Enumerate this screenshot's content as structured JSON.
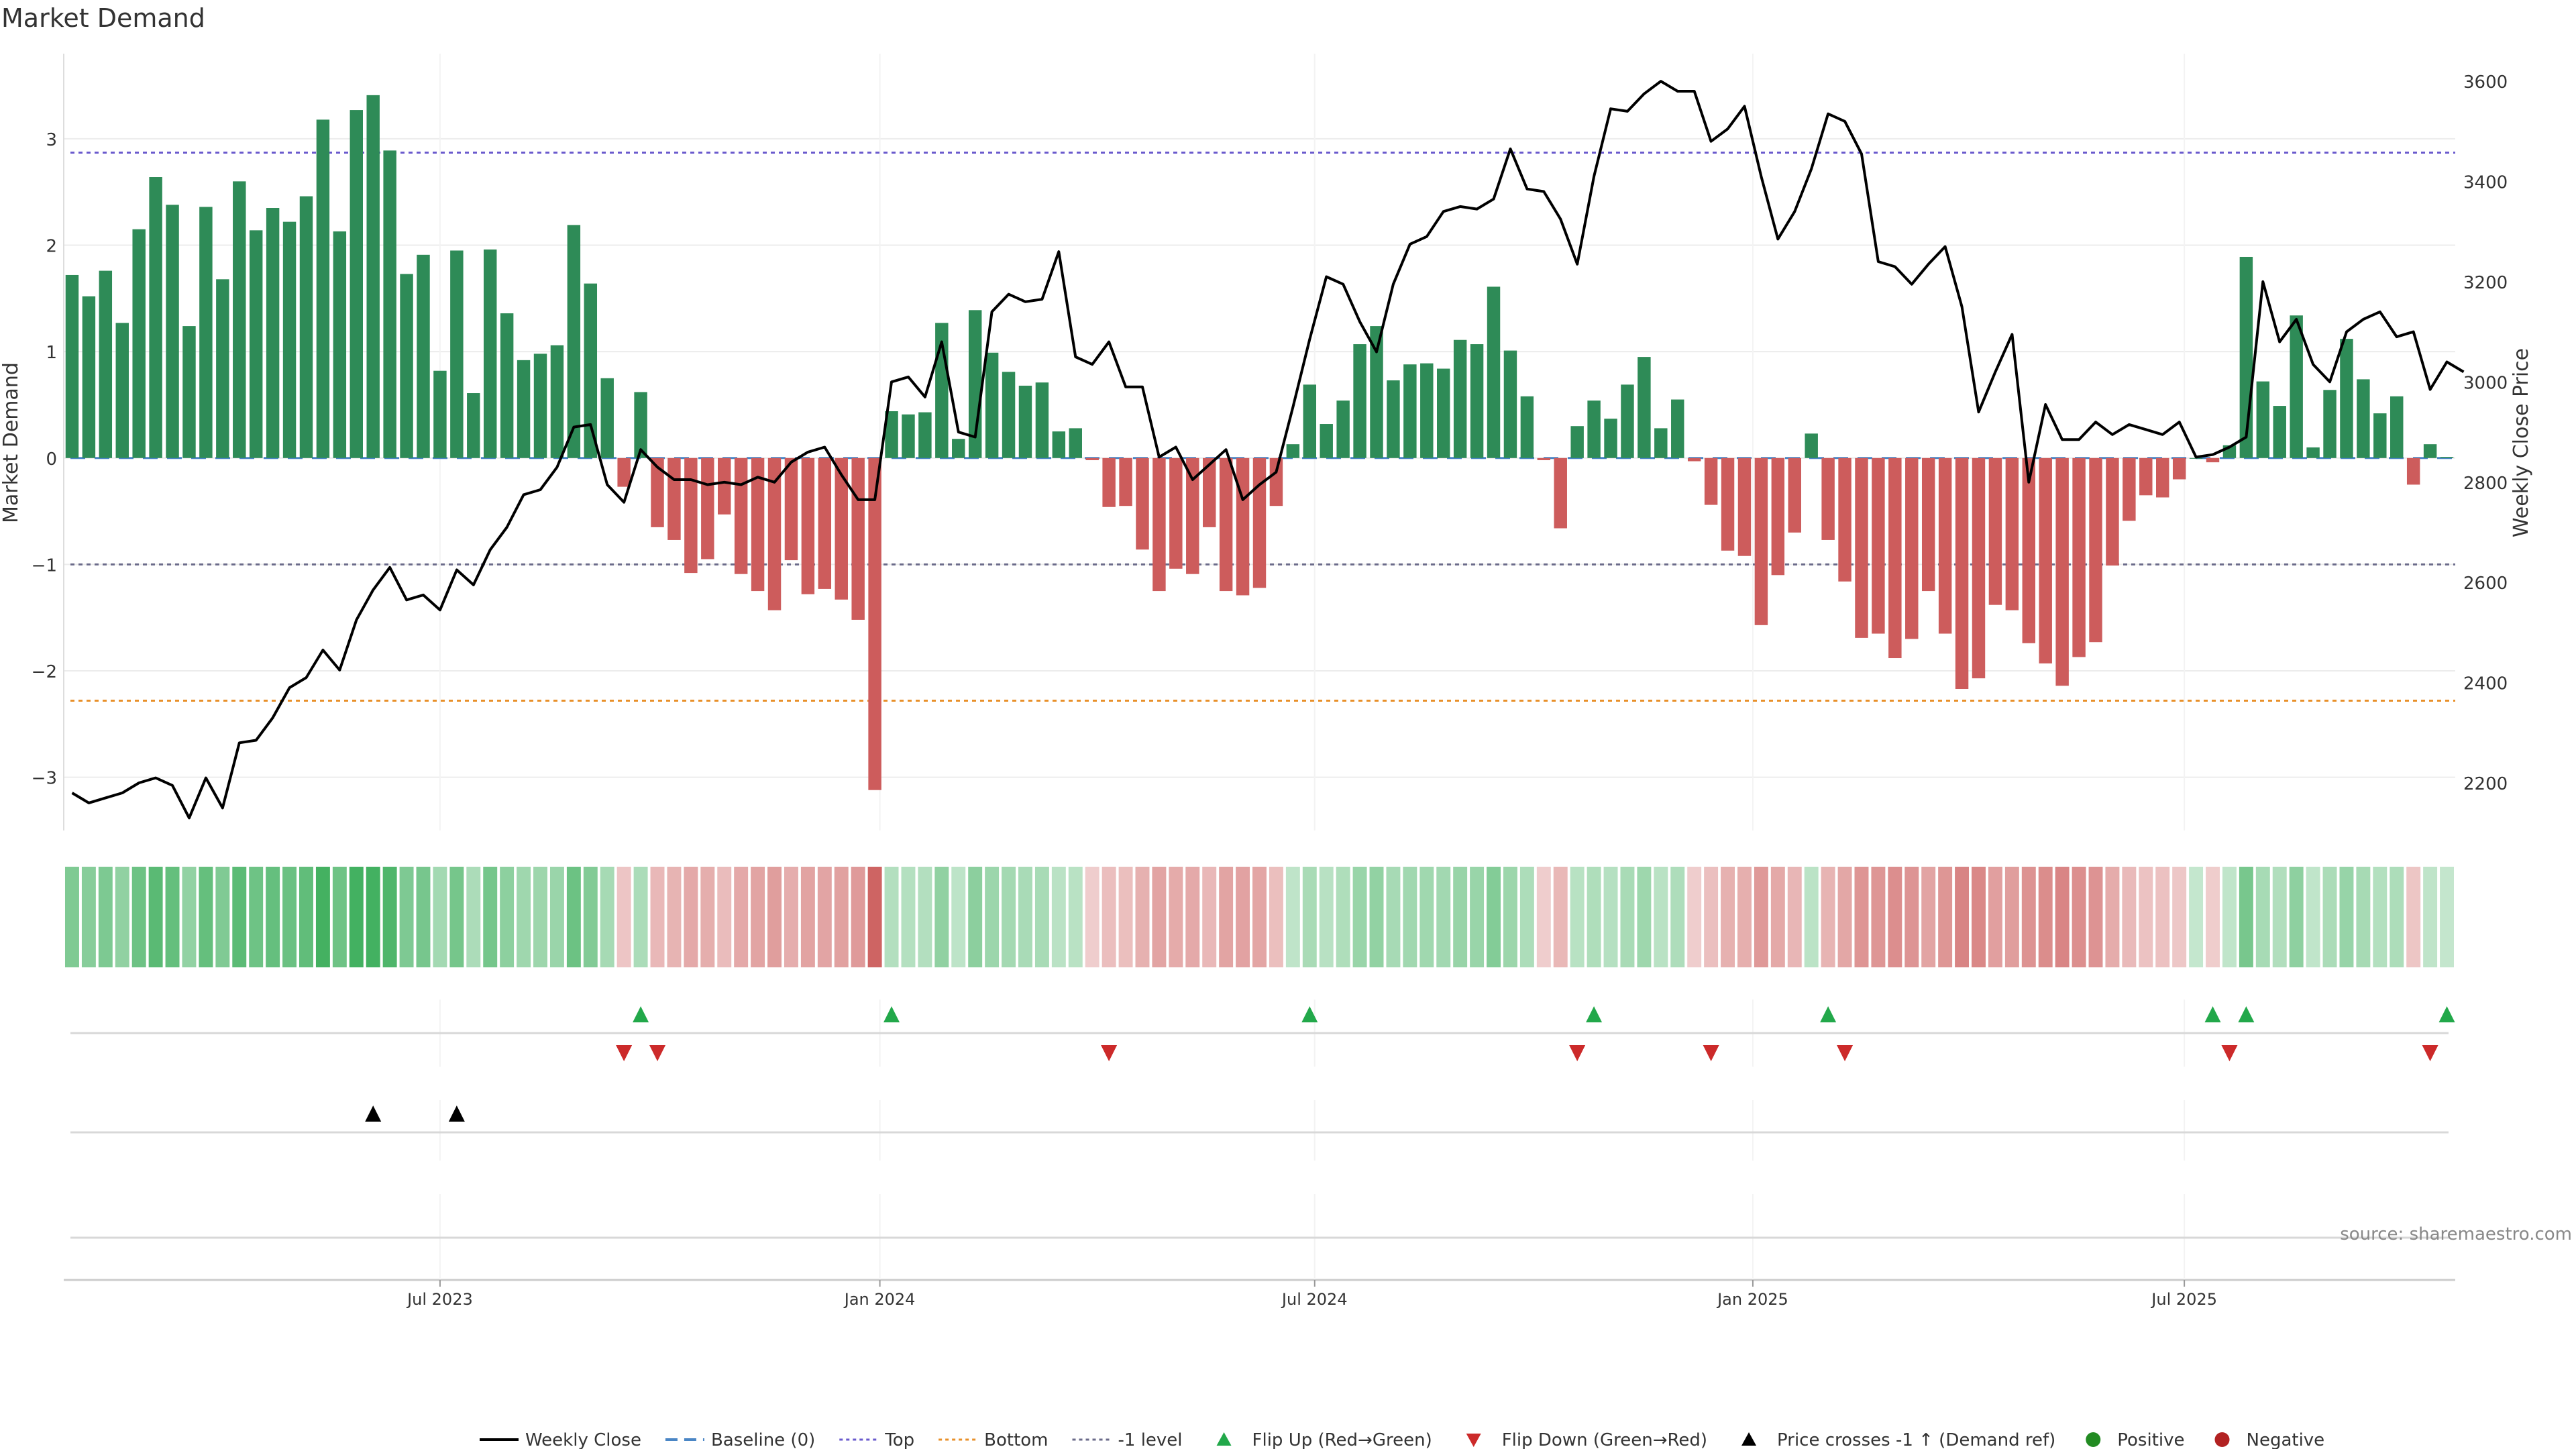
{
  "title": "Market Demand",
  "source": "source: sharemaestro.com",
  "colors": {
    "positive_bar": "#2e8b57",
    "negative_bar": "#cd5c5c",
    "price_line": "#000000",
    "baseline": "#4a86c5",
    "top": "#6a5acd",
    "bottom": "#e8902a",
    "minus_one": "#6b6b8a",
    "flip_up": "#22a84a",
    "flip_down": "#cc2a2a",
    "cross": "#000000",
    "positive_dot": "#228b22",
    "negative_dot": "#b22222",
    "grid": "#ececec"
  },
  "legend": [
    {
      "label": "Weekly Close",
      "marker": "line",
      "color": "#000000"
    },
    {
      "label": "Baseline (0)",
      "marker": "dash",
      "color": "#4a86c5"
    },
    {
      "label": "Top",
      "marker": "dot",
      "color": "#6a5acd"
    },
    {
      "label": "Bottom",
      "marker": "dot",
      "color": "#e8902a"
    },
    {
      "label": "-1 level",
      "marker": "dot",
      "color": "#6b6b8a"
    },
    {
      "label": "Flip Up (Red→Green)",
      "marker": "tri-up",
      "color": "#22a84a"
    },
    {
      "label": "Flip Down (Green→Red)",
      "marker": "tri-down",
      "color": "#cc2a2a"
    },
    {
      "label": "Price crosses -1 ↑ (Demand ref)",
      "marker": "tri-up",
      "color": "#000000"
    },
    {
      "label": "Positive",
      "marker": "circle",
      "color": "#228b22"
    },
    {
      "label": "Negative",
      "marker": "circle",
      "color": "#b22222"
    }
  ],
  "chart_data": {
    "type": "bar",
    "xlabel": "",
    "ylabel": "Market Demand",
    "y2label": "Weekly Close Price",
    "ylim": [
      -3.5,
      3.8
    ],
    "y2lim": [
      2105,
      3655
    ],
    "yticks": [
      -3,
      -2,
      -1,
      0,
      1,
      2,
      3
    ],
    "yticklabels": [
      "−3",
      "−2",
      "−1",
      "0",
      "1",
      "2",
      "3"
    ],
    "y2ticks": [
      2200,
      2400,
      2600,
      2800,
      3000,
      3200,
      3400,
      3600
    ],
    "y2ticklabels": [
      "2200",
      "2400",
      "2600",
      "2800",
      "3000",
      "3200",
      "3400",
      "3600"
    ],
    "x_start_index": 0,
    "xticks": [
      {
        "index": 22,
        "label": "Jul 2023"
      },
      {
        "index": 48.3,
        "label": "Jan 2024"
      },
      {
        "index": 74.3,
        "label": "Jul 2024"
      },
      {
        "index": 100.5,
        "label": "Jan 2025"
      },
      {
        "index": 126.3,
        "label": "Jul 2025"
      }
    ],
    "reference_lines": {
      "baseline": 0,
      "top": 2.87,
      "bottom": -2.28,
      "minus_one": -1
    },
    "demand": [
      1.72,
      1.52,
      1.76,
      1.27,
      2.15,
      2.64,
      2.38,
      1.24,
      2.36,
      1.68,
      2.6,
      2.14,
      2.35,
      2.22,
      2.46,
      3.18,
      2.13,
      3.27,
      3.41,
      2.89,
      1.73,
      1.91,
      0.82,
      1.95,
      0.61,
      1.96,
      1.36,
      0.92,
      0.98,
      1.06,
      2.19,
      1.64,
      0.75,
      -0.27,
      0.62,
      -0.65,
      -0.77,
      -1.08,
      -0.95,
      -0.53,
      -1.09,
      -1.25,
      -1.43,
      -0.96,
      -1.28,
      -1.23,
      -1.33,
      -1.52,
      -3.12,
      0.44,
      0.41,
      0.43,
      1.27,
      0.18,
      1.39,
      0.99,
      0.81,
      0.68,
      0.71,
      0.25,
      0.28,
      -0.02,
      -0.46,
      -0.45,
      -0.86,
      -1.25,
      -1.04,
      -1.09,
      -0.65,
      -1.25,
      -1.29,
      -1.22,
      -0.45,
      0.13,
      0.69,
      0.32,
      0.54,
      1.07,
      1.24,
      0.73,
      0.88,
      0.89,
      0.84,
      1.11,
      1.07,
      1.61,
      1.01,
      0.58,
      -0.02,
      -0.66,
      0.3,
      0.54,
      0.37,
      0.69,
      0.95,
      0.28,
      0.55,
      -0.03,
      -0.44,
      -0.87,
      -0.92,
      -1.57,
      -1.1,
      -0.7,
      0.23,
      -0.77,
      -1.16,
      -1.69,
      -1.65,
      -1.88,
      -1.7,
      -1.25,
      -1.65,
      -2.17,
      -2.07,
      -1.38,
      -1.43,
      -1.74,
      -1.93,
      -2.14,
      -1.87,
      -1.73,
      -1.01,
      -0.59,
      -0.35,
      -0.37,
      -0.2,
      0.0,
      -0.04,
      0.12,
      1.89,
      0.72,
      0.49,
      1.34,
      0.1,
      0.64,
      1.12,
      0.74,
      0.42,
      0.58,
      -0.25,
      0.13,
      0.01
    ],
    "weekly_close": [
      2180,
      2160,
      2170,
      2180,
      2200,
      2210,
      2195,
      2130,
      2210,
      2150,
      2280,
      2285,
      2330,
      2390,
      2410,
      2465,
      2425,
      2525,
      2585,
      2630,
      2565,
      2575,
      2545,
      2625,
      2595,
      2665,
      2710,
      2775,
      2785,
      2830,
      2910,
      2915,
      2795,
      2760,
      2865,
      2830,
      2805,
      2805,
      2795,
      2800,
      2795,
      2810,
      2800,
      2840,
      2860,
      2870,
      2815,
      2765,
      2765,
      3000,
      3010,
      2970,
      3080,
      2900,
      2890,
      3140,
      3175,
      3160,
      3165,
      3260,
      3050,
      3035,
      3080,
      2990,
      2990,
      2850,
      2870,
      2805,
      2835,
      2865,
      2765,
      2795,
      2820,
      2950,
      3085,
      3210,
      3195,
      3120,
      3060,
      3195,
      3275,
      3290,
      3340,
      3350,
      3345,
      3365,
      3465,
      3385,
      3380,
      3325,
      3235,
      3410,
      3545,
      3540,
      3575,
      3600,
      3580,
      3580,
      3480,
      3505,
      3550,
      3410,
      3285,
      3340,
      3425,
      3535,
      3520,
      3455,
      3240,
      3230,
      3195,
      3235,
      3270,
      3150,
      2940,
      3020,
      3095,
      2800,
      2955,
      2885,
      2885,
      2920,
      2895,
      2915,
      2905,
      2895,
      2920,
      2850,
      2855,
      2870,
      2890,
      3200,
      3080,
      3125,
      3035,
      3000,
      3100,
      3125,
      3140,
      3090,
      3100,
      2985,
      3040,
      3020
    ],
    "flip_up": [
      34,
      49,
      74,
      91,
      105,
      128,
      130,
      142
    ],
    "flip_down": [
      33,
      35,
      62,
      90,
      98,
      106,
      129,
      141
    ],
    "price_cross_up": [
      18,
      23
    ]
  }
}
